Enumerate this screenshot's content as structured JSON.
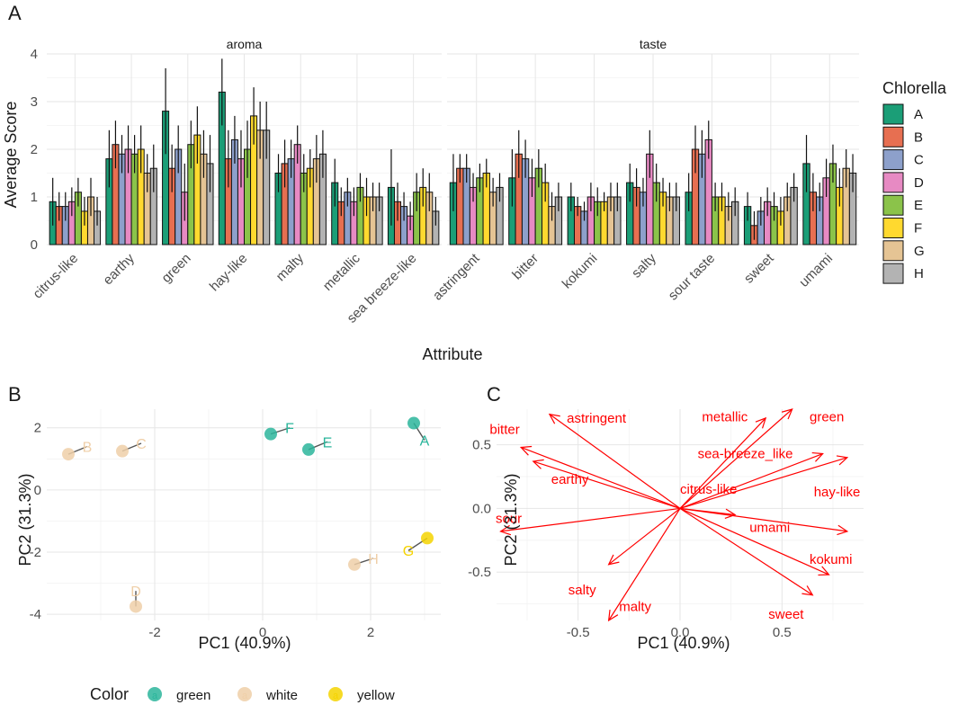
{
  "colors": {
    "A": "#1b9e77",
    "B": "#e76f51",
    "C": "#8da0cb",
    "D": "#e78ac3",
    "E": "#8bc34a",
    "F": "#ffd92f",
    "G": "#e5c494",
    "H": "#b3b3b3",
    "green": "#2bb59b",
    "white": "#efcfa8",
    "yellow": "#f5d300",
    "arrow": "#ff0000"
  },
  "chart_data": [
    {
      "panel": "A",
      "type": "bar",
      "xlabel": "Attribute",
      "ylabel": "Average Score",
      "ylim": [
        0,
        4
      ],
      "yticks": [
        0,
        1,
        2,
        3,
        4
      ],
      "legend_title": "Chlorella",
      "series_names": [
        "A",
        "B",
        "C",
        "D",
        "E",
        "F",
        "G",
        "H"
      ],
      "facets": [
        {
          "name": "aroma",
          "categories": [
            "citrus-like",
            "earthy",
            "green",
            "hay-like",
            "malty",
            "metallic",
            "sea breeze-like"
          ],
          "values": [
            [
              0.9,
              0.8,
              0.8,
              0.9,
              1.1,
              0.7,
              1.0,
              0.7
            ],
            [
              1.8,
              2.1,
              1.9,
              2.0,
              1.9,
              2.0,
              1.5,
              1.6
            ],
            [
              2.8,
              1.6,
              2.0,
              1.1,
              2.1,
              2.3,
              1.9,
              1.7
            ],
            [
              3.2,
              1.8,
              2.2,
              1.8,
              2.0,
              2.7,
              2.4,
              2.4
            ],
            [
              1.5,
              1.7,
              1.8,
              2.1,
              1.5,
              1.6,
              1.8,
              1.9
            ],
            [
              1.3,
              0.9,
              1.1,
              0.9,
              1.2,
              1.0,
              1.0,
              1.0
            ],
            [
              1.2,
              0.9,
              0.8,
              0.6,
              1.1,
              1.2,
              1.1,
              0.7
            ]
          ],
          "errors": [
            [
              0.5,
              0.3,
              0.3,
              0.3,
              0.3,
              0.3,
              0.4,
              0.3
            ],
            [
              0.6,
              0.5,
              0.4,
              0.5,
              0.4,
              0.5,
              0.4,
              0.5
            ],
            [
              0.9,
              0.5,
              0.5,
              0.6,
              0.5,
              0.6,
              0.5,
              0.6
            ],
            [
              0.7,
              0.6,
              0.5,
              0.6,
              0.6,
              0.6,
              0.6,
              0.6
            ],
            [
              0.4,
              0.5,
              0.4,
              0.4,
              0.4,
              0.4,
              0.5,
              0.5
            ],
            [
              0.5,
              0.3,
              0.3,
              0.3,
              0.3,
              0.4,
              0.3,
              0.3
            ],
            [
              0.8,
              0.4,
              0.3,
              0.3,
              0.4,
              0.4,
              0.4,
              0.3
            ]
          ]
        },
        {
          "name": "taste",
          "categories": [
            "astringent",
            "bitter",
            "kokumi",
            "salty",
            "sour taste",
            "sweet",
            "umami"
          ],
          "values": [
            [
              1.3,
              1.6,
              1.6,
              1.2,
              1.4,
              1.5,
              1.1,
              1.2
            ],
            [
              1.4,
              1.9,
              1.8,
              1.4,
              1.6,
              1.3,
              0.8,
              1.0
            ],
            [
              1.0,
              0.8,
              0.7,
              1.0,
              0.9,
              0.9,
              1.0,
              1.0
            ],
            [
              1.3,
              1.2,
              1.1,
              1.9,
              1.3,
              1.1,
              1.0,
              1.0
            ],
            [
              1.1,
              2.0,
              1.9,
              2.2,
              1.0,
              1.0,
              0.8,
              0.9
            ],
            [
              0.8,
              0.4,
              0.7,
              0.9,
              0.8,
              0.7,
              1.0,
              1.2
            ],
            [
              1.7,
              1.1,
              1.0,
              1.4,
              1.7,
              1.2,
              1.6,
              1.5
            ]
          ],
          "errors": [
            [
              0.6,
              0.3,
              0.3,
              0.3,
              0.3,
              0.3,
              0.3,
              0.3
            ],
            [
              0.6,
              0.5,
              0.4,
              0.4,
              0.4,
              0.4,
              0.3,
              0.3
            ],
            [
              0.3,
              0.2,
              0.2,
              0.3,
              0.3,
              0.2,
              0.3,
              0.3
            ],
            [
              0.4,
              0.4,
              0.3,
              0.5,
              0.4,
              0.3,
              0.3,
              0.3
            ],
            [
              0.4,
              0.5,
              0.5,
              0.4,
              0.3,
              0.3,
              0.3,
              0.3
            ],
            [
              0.3,
              0.3,
              0.3,
              0.3,
              0.3,
              0.3,
              0.3,
              0.3
            ],
            [
              0.6,
              0.4,
              0.3,
              0.4,
              0.4,
              0.4,
              0.4,
              0.4
            ]
          ]
        }
      ]
    },
    {
      "panel": "B",
      "type": "scatter",
      "xlabel": "PC1 (40.9%)",
      "ylabel": "PC2 (31.3%)",
      "xlim": [
        -4.0,
        3.3
      ],
      "ylim": [
        -4.2,
        2.6
      ],
      "xticks": [
        -2,
        0,
        2
      ],
      "yticks": [
        -4,
        -2,
        0,
        2
      ],
      "legend_title": "Color",
      "legend_symbol": "a",
      "legend_items": [
        "green",
        "white",
        "yellow"
      ],
      "points": [
        {
          "label": "A",
          "x": 2.8,
          "y": 2.15,
          "group": "green",
          "lx": 3.0,
          "ly": 1.6
        },
        {
          "label": "B",
          "x": -3.6,
          "y": 1.15,
          "group": "white",
          "lx": -3.25,
          "ly": 1.4
        },
        {
          "label": "C",
          "x": -2.6,
          "y": 1.25,
          "group": "white",
          "lx": -2.25,
          "ly": 1.5
        },
        {
          "label": "D",
          "x": -2.35,
          "y": -3.75,
          "group": "white",
          "lx": -2.35,
          "ly": -3.25
        },
        {
          "label": "E",
          "x": 0.85,
          "y": 1.3,
          "group": "green",
          "lx": 1.2,
          "ly": 1.55
        },
        {
          "label": "F",
          "x": 0.15,
          "y": 1.8,
          "group": "green",
          "lx": 0.5,
          "ly": 2.0
        },
        {
          "label": "G",
          "x": 3.05,
          "y": -1.55,
          "group": "yellow",
          "lx": 2.7,
          "ly": -1.95
        },
        {
          "label": "H",
          "x": 1.7,
          "y": -2.4,
          "group": "white",
          "lx": 2.05,
          "ly": -2.2
        }
      ]
    },
    {
      "panel": "C",
      "type": "biplot",
      "xlabel": "PC1 (40.9%)",
      "ylabel": "PC2 (31.3%)",
      "xlim": [
        -0.9,
        0.9
      ],
      "ylim": [
        -0.88,
        0.78
      ],
      "xticks": [
        -0.5,
        0.0,
        0.5
      ],
      "yticks": [
        -0.5,
        0.0,
        0.5
      ],
      "xtick_labels": [
        "-0.5",
        "0.0",
        "0.5"
      ],
      "ytick_labels": [
        "-0.5",
        "0.0",
        "0.5"
      ],
      "arrows": [
        {
          "label": "astringent",
          "x": -0.64,
          "y": 0.74,
          "lx": -0.41,
          "ly": 0.71
        },
        {
          "label": "bitter",
          "x": -0.78,
          "y": 0.48,
          "lx": -0.86,
          "ly": 0.62
        },
        {
          "label": "earthy",
          "x": -0.72,
          "y": 0.37,
          "lx": -0.54,
          "ly": 0.23
        },
        {
          "label": "sour",
          "x": -0.88,
          "y": -0.18,
          "lx": -0.84,
          "ly": -0.08
        },
        {
          "label": "salty",
          "x": -0.35,
          "y": -0.44,
          "lx": -0.48,
          "ly": -0.64
        },
        {
          "label": "malty",
          "x": -0.35,
          "y": -0.88,
          "lx": -0.22,
          "ly": -0.77
        },
        {
          "label": "metallic",
          "x": 0.42,
          "y": 0.71,
          "lx": 0.22,
          "ly": 0.72
        },
        {
          "label": "green",
          "x": 0.55,
          "y": 0.78,
          "lx": 0.72,
          "ly": 0.72
        },
        {
          "label": "sea-breeze_like",
          "x": 0.7,
          "y": 0.43,
          "lx": 0.32,
          "ly": 0.43
        },
        {
          "label": "citrus-like",
          "x": 0.27,
          "y": -0.05,
          "lx": 0.14,
          "ly": 0.15
        },
        {
          "label": "hay-like",
          "x": 0.82,
          "y": 0.4,
          "lx": 0.77,
          "ly": 0.13
        },
        {
          "label": "umami",
          "x": 0.82,
          "y": -0.18,
          "lx": 0.44,
          "ly": -0.15
        },
        {
          "label": "kokumi",
          "x": 0.73,
          "y": -0.52,
          "lx": 0.74,
          "ly": -0.4
        },
        {
          "label": "sweet",
          "x": 0.65,
          "y": -0.68,
          "lx": 0.52,
          "ly": -0.83
        }
      ]
    }
  ]
}
